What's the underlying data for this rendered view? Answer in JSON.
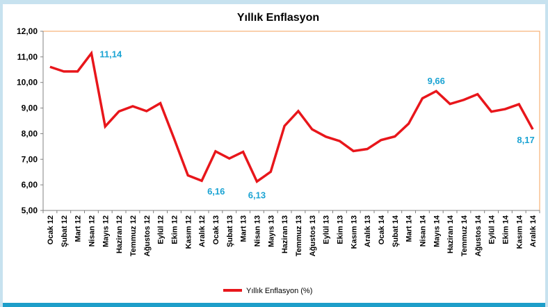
{
  "chart_data": {
    "type": "line",
    "title": "Yıllık Enflasyon",
    "xlabel": "",
    "ylabel": "",
    "ylim": [
      5.0,
      12.0
    ],
    "yticks": [
      "5,00",
      "6,00",
      "7,00",
      "8,00",
      "9,00",
      "10,00",
      "11,00",
      "12,00"
    ],
    "ytick_values": [
      5,
      6,
      7,
      8,
      9,
      10,
      11,
      12
    ],
    "categories": [
      "Ocak 12",
      "Şubat 12",
      "Mart 12",
      "Nisan 12",
      "Mayıs 12",
      "Haziran 12",
      "Temmuz 12",
      "Ağustos 12",
      "Eylül 12",
      "Ekim 12",
      "Kasım 12",
      "Aralık 12",
      "Ocak 13",
      "Şubat 13",
      "Mart 13",
      "Nisan 13",
      "Mayıs 13",
      "Haziran 13",
      "Temmuz 13",
      "Ağustos 13",
      "Eylül 13",
      "Ekim 13",
      "Kasım 13",
      "Aralık 13",
      "Ocak 14",
      "Şubat 14",
      "Mart 14",
      "Nisan 14",
      "Mayıs 14",
      "Haziran 14",
      "Temmuz 14",
      "Ağustos 14",
      "Eylül 14",
      "Ekim 14",
      "Kasım 14",
      "Aralık 14"
    ],
    "series": [
      {
        "name": "Yıllık Enflasyon (%)",
        "color": "#e8161b",
        "values": [
          10.61,
          10.43,
          10.43,
          11.14,
          8.28,
          8.87,
          9.07,
          8.88,
          9.19,
          7.8,
          6.37,
          6.16,
          7.31,
          7.03,
          7.29,
          6.13,
          6.51,
          8.3,
          8.88,
          8.17,
          7.88,
          7.71,
          7.32,
          7.4,
          7.75,
          7.89,
          8.39,
          9.38,
          9.66,
          9.16,
          9.32,
          9.54,
          8.86,
          8.96,
          9.15,
          8.17
        ]
      }
    ],
    "annotations": [
      {
        "index": 3,
        "text": "11,14",
        "position": "right"
      },
      {
        "index": 11,
        "text": "6,16",
        "position": "below-right"
      },
      {
        "index": 15,
        "text": "6,13",
        "position": "below"
      },
      {
        "index": 28,
        "text": "9,66",
        "position": "above"
      },
      {
        "index": 35,
        "text": "8,17",
        "position": "above-left"
      }
    ],
    "grid": false,
    "legend": "bottom-center",
    "plot_border_color": "#f5a25a"
  }
}
